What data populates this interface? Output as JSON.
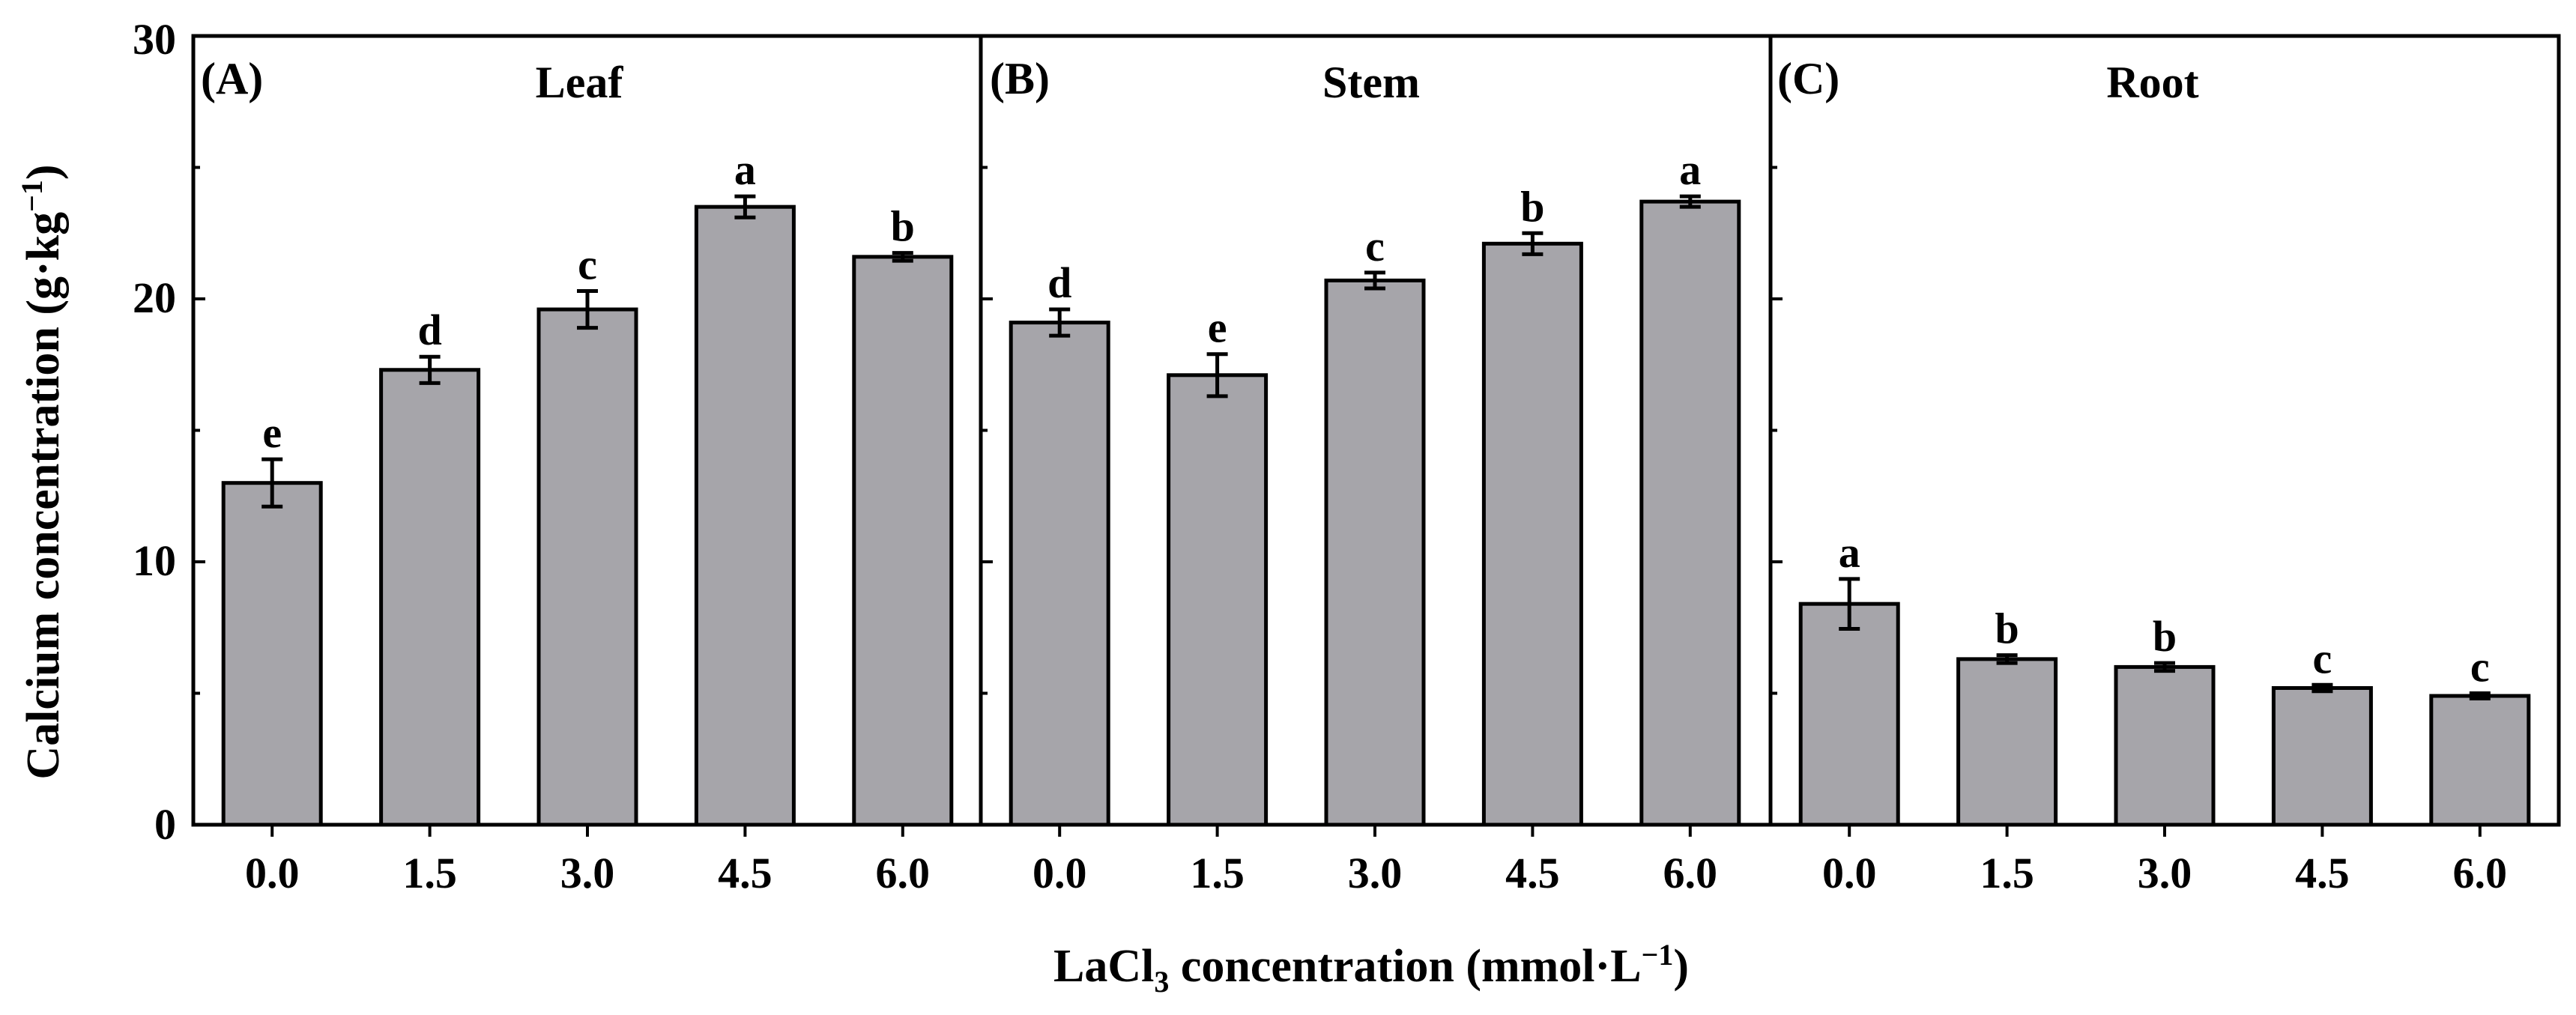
{
  "chart_data": {
    "type": "bar",
    "y_axis": {
      "label_main": "Calcium concentration (g·kg",
      "label_sup": "−1",
      "label_close": ")",
      "ylim": [
        0,
        30
      ],
      "ticks": [
        "0",
        "10",
        "20",
        "30"
      ]
    },
    "x_axis": {
      "label_pre": "LaCl",
      "label_sub": "3",
      "label_mid": " concentration (mmol·L",
      "label_sup": "−1",
      "label_close": ")"
    },
    "panels": [
      {
        "tag": "(A)",
        "title": "Leaf",
        "categories": [
          "0.0",
          "1.5",
          "3.0",
          "4.5",
          "6.0"
        ],
        "values": [
          13.0,
          17.3,
          19.6,
          23.5,
          21.6
        ],
        "errors": [
          0.9,
          0.5,
          0.7,
          0.4,
          0.15
        ],
        "letters": [
          "e",
          "d",
          "c",
          "a",
          "b"
        ]
      },
      {
        "tag": "(B)",
        "title": "Stem",
        "categories": [
          "0.0",
          "1.5",
          "3.0",
          "4.5",
          "6.0"
        ],
        "values": [
          19.1,
          17.1,
          20.7,
          22.1,
          23.7
        ],
        "errors": [
          0.5,
          0.8,
          0.3,
          0.4,
          0.2
        ],
        "letters": [
          "d",
          "e",
          "c",
          "b",
          "a"
        ]
      },
      {
        "tag": "(C)",
        "title": "Root",
        "categories": [
          "0.0",
          "1.5",
          "3.0",
          "4.5",
          "6.0"
        ],
        "values": [
          8.4,
          6.3,
          6.0,
          5.2,
          4.9
        ],
        "errors": [
          0.95,
          0.15,
          0.15,
          0.12,
          0.1
        ],
        "letters": [
          "a",
          "b",
          "b",
          "c",
          "c"
        ]
      }
    ],
    "colors": {
      "bar": "#a6a5aa",
      "edge": "#000000"
    }
  }
}
